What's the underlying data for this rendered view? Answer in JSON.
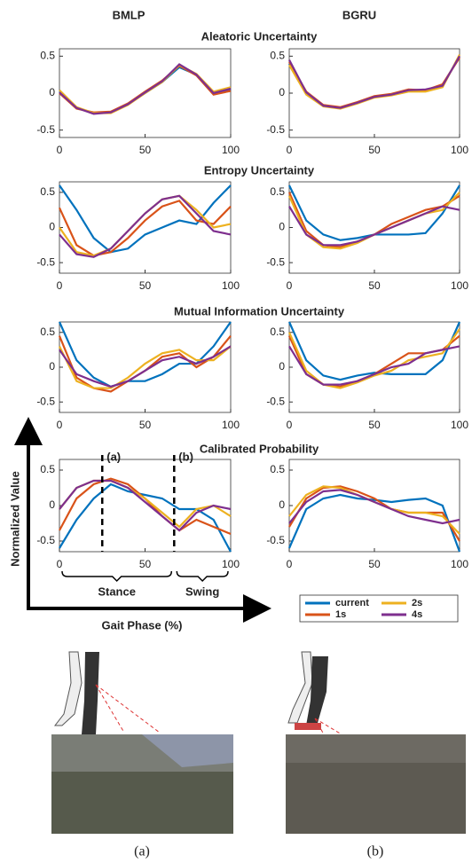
{
  "column_titles": [
    "BMLP",
    "BGRU"
  ],
  "row_titles": [
    "Aleatoric Uncertainty",
    "Entropy Uncertainty",
    "Mutual Information Uncertainty",
    "Calibrated Probability"
  ],
  "legend": [
    {
      "name": "current",
      "color": "#0072BD"
    },
    {
      "name": "1s",
      "color": "#D95319"
    },
    {
      "name": "2s",
      "color": "#EDB120"
    },
    {
      "name": "4s",
      "color": "#7E2F8E"
    }
  ],
  "y_axis_label": "Normalized Value",
  "x_axis_label": "Gait Phase (%)",
  "phases": [
    {
      "label": "Stance",
      "from": 0,
      "to": 67
    },
    {
      "label": "Swing",
      "from": 67,
      "to": 100
    }
  ],
  "captions": [
    "(a)",
    "(b)"
  ],
  "chart_data": [
    {
      "type": "line",
      "x": [
        0,
        10,
        20,
        30,
        40,
        50,
        60,
        70,
        80,
        90,
        100
      ],
      "xlim": [
        0,
        100
      ],
      "xticks": [
        0,
        50,
        100
      ],
      "ylim": [
        -0.6,
        0.6
      ],
      "yticks": [
        -0.5,
        0,
        0.5
      ],
      "series": [
        {
          "values": [
            0.02,
            -0.2,
            -0.27,
            -0.26,
            -0.15,
            0.0,
            0.15,
            0.35,
            0.25,
            0.0,
            0.05
          ]
        },
        {
          "values": [
            0.0,
            -0.21,
            -0.26,
            -0.25,
            -0.14,
            0.02,
            0.17,
            0.37,
            0.24,
            -0.02,
            0.03
          ]
        },
        {
          "values": [
            0.04,
            -0.19,
            -0.27,
            -0.27,
            -0.16,
            0.0,
            0.15,
            0.38,
            0.26,
            0.02,
            0.08
          ]
        },
        {
          "values": [
            0.01,
            -0.2,
            -0.28,
            -0.26,
            -0.15,
            0.01,
            0.16,
            0.39,
            0.25,
            0.0,
            0.06
          ]
        }
      ]
    },
    {
      "type": "line",
      "x": [
        0,
        10,
        20,
        30,
        40,
        50,
        60,
        70,
        80,
        90,
        100
      ],
      "xlim": [
        0,
        100
      ],
      "xticks": [
        0,
        50,
        100
      ],
      "ylim": [
        -0.6,
        0.6
      ],
      "yticks": [
        -0.5,
        0,
        0.5
      ],
      "series": [
        {
          "values": [
            0.4,
            0.0,
            -0.17,
            -0.2,
            -0.13,
            -0.05,
            -0.02,
            0.03,
            0.03,
            0.1,
            0.5
          ]
        },
        {
          "values": [
            0.42,
            0.02,
            -0.16,
            -0.19,
            -0.12,
            -0.04,
            -0.01,
            0.05,
            0.04,
            0.12,
            0.48
          ]
        },
        {
          "values": [
            0.38,
            -0.02,
            -0.18,
            -0.21,
            -0.14,
            -0.06,
            -0.03,
            0.02,
            0.02,
            0.08,
            0.52
          ]
        },
        {
          "values": [
            0.45,
            0.01,
            -0.17,
            -0.2,
            -0.13,
            -0.05,
            -0.02,
            0.04,
            0.05,
            0.1,
            0.5
          ]
        }
      ]
    },
    {
      "type": "line",
      "x": [
        0,
        10,
        20,
        30,
        40,
        50,
        60,
        70,
        80,
        90,
        100
      ],
      "xlim": [
        0,
        100
      ],
      "xticks": [
        0,
        50,
        100
      ],
      "ylim": [
        -0.65,
        0.65
      ],
      "yticks": [
        -0.5,
        0,
        0.5
      ],
      "series": [
        {
          "values": [
            0.6,
            0.25,
            -0.15,
            -0.35,
            -0.3,
            -0.1,
            0.0,
            0.1,
            0.05,
            0.35,
            0.6
          ]
        },
        {
          "values": [
            0.28,
            -0.25,
            -0.4,
            -0.35,
            -0.15,
            0.1,
            0.3,
            0.38,
            0.1,
            0.05,
            0.3
          ]
        },
        {
          "values": [
            0.0,
            -0.35,
            -0.4,
            -0.3,
            -0.05,
            0.2,
            0.4,
            0.45,
            0.25,
            0.0,
            0.05
          ]
        },
        {
          "values": [
            -0.1,
            -0.38,
            -0.42,
            -0.3,
            -0.05,
            0.2,
            0.4,
            0.45,
            0.2,
            -0.05,
            -0.1
          ]
        }
      ]
    },
    {
      "type": "line",
      "x": [
        0,
        10,
        20,
        30,
        40,
        50,
        60,
        70,
        80,
        90,
        100
      ],
      "xlim": [
        0,
        100
      ],
      "xticks": [
        0,
        50,
        100
      ],
      "ylim": [
        -0.65,
        0.65
      ],
      "yticks": [
        -0.5,
        0,
        0.5
      ],
      "series": [
        {
          "values": [
            0.6,
            0.1,
            -0.1,
            -0.18,
            -0.15,
            -0.1,
            -0.1,
            -0.1,
            -0.08,
            0.2,
            0.6
          ]
        },
        {
          "values": [
            0.5,
            -0.05,
            -0.25,
            -0.28,
            -0.2,
            -0.1,
            0.05,
            0.15,
            0.25,
            0.3,
            0.45
          ]
        },
        {
          "values": [
            0.45,
            -0.1,
            -0.28,
            -0.3,
            -0.22,
            -0.1,
            0.0,
            0.1,
            0.2,
            0.25,
            0.5
          ]
        },
        {
          "values": [
            0.3,
            -0.1,
            -0.25,
            -0.25,
            -0.2,
            -0.1,
            0.0,
            0.1,
            0.2,
            0.3,
            0.25
          ]
        }
      ]
    },
    {
      "type": "line",
      "x": [
        0,
        10,
        20,
        30,
        40,
        50,
        60,
        70,
        80,
        90,
        100
      ],
      "xlim": [
        0,
        100
      ],
      "xticks": [
        0,
        50,
        100
      ],
      "ylim": [
        -0.65,
        0.65
      ],
      "yticks": [
        -0.5,
        0,
        0.5
      ],
      "series": [
        {
          "values": [
            0.65,
            0.1,
            -0.15,
            -0.28,
            -0.2,
            -0.2,
            -0.1,
            0.05,
            0.05,
            0.3,
            0.65
          ]
        },
        {
          "values": [
            0.45,
            -0.15,
            -0.3,
            -0.35,
            -0.2,
            -0.05,
            0.15,
            0.2,
            0.0,
            0.15,
            0.45
          ]
        },
        {
          "values": [
            0.3,
            -0.2,
            -0.3,
            -0.3,
            -0.15,
            0.05,
            0.2,
            0.25,
            0.1,
            0.1,
            0.3
          ]
        },
        {
          "values": [
            0.25,
            -0.1,
            -0.2,
            -0.28,
            -0.2,
            -0.05,
            0.1,
            0.15,
            0.05,
            0.15,
            0.3
          ]
        }
      ]
    },
    {
      "type": "line",
      "x": [
        0,
        10,
        20,
        30,
        40,
        50,
        60,
        70,
        80,
        90,
        100
      ],
      "xlim": [
        0,
        100
      ],
      "xticks": [
        0,
        50,
        100
      ],
      "ylim": [
        -0.65,
        0.65
      ],
      "yticks": [
        -0.5,
        0,
        0.5
      ],
      "series": [
        {
          "values": [
            0.65,
            0.1,
            -0.12,
            -0.18,
            -0.12,
            -0.08,
            -0.1,
            -0.1,
            -0.1,
            0.1,
            0.65
          ]
        },
        {
          "values": [
            0.45,
            -0.1,
            -0.25,
            -0.28,
            -0.2,
            -0.1,
            0.05,
            0.2,
            0.2,
            0.25,
            0.45
          ]
        },
        {
          "values": [
            0.5,
            -0.05,
            -0.25,
            -0.3,
            -0.22,
            -0.12,
            -0.05,
            0.1,
            0.15,
            0.2,
            0.55
          ]
        },
        {
          "values": [
            0.3,
            -0.1,
            -0.25,
            -0.25,
            -0.2,
            -0.1,
            0.0,
            0.05,
            0.2,
            0.25,
            0.3
          ]
        }
      ]
    },
    {
      "type": "line",
      "x": [
        0,
        10,
        20,
        30,
        40,
        50,
        60,
        70,
        80,
        90,
        100
      ],
      "xlim": [
        0,
        100
      ],
      "xticks": [
        0,
        50,
        100
      ],
      "ylim": [
        -0.65,
        0.65
      ],
      "yticks": [
        -0.5,
        0,
        0.5
      ],
      "annotations": [
        {
          "text": "(a)",
          "x": 25
        },
        {
          "text": "(b)",
          "x": 67
        }
      ],
      "series": [
        {
          "values": [
            -0.6,
            -0.2,
            0.1,
            0.3,
            0.2,
            0.15,
            0.1,
            -0.05,
            -0.05,
            -0.2,
            -0.65
          ]
        },
        {
          "values": [
            -0.35,
            0.1,
            0.3,
            0.38,
            0.3,
            0.1,
            -0.15,
            -0.35,
            -0.2,
            -0.3,
            -0.4
          ]
        },
        {
          "values": [
            -0.05,
            0.25,
            0.35,
            0.35,
            0.25,
            0.1,
            -0.1,
            -0.3,
            -0.05,
            0.0,
            -0.15
          ]
        },
        {
          "values": [
            -0.05,
            0.25,
            0.35,
            0.35,
            0.25,
            0.05,
            -0.15,
            -0.35,
            -0.1,
            0.0,
            -0.05
          ]
        }
      ]
    },
    {
      "type": "line",
      "x": [
        0,
        10,
        20,
        30,
        40,
        50,
        60,
        70,
        80,
        90,
        100
      ],
      "xlim": [
        0,
        100
      ],
      "xticks": [
        0,
        50,
        100
      ],
      "ylim": [
        -0.65,
        0.65
      ],
      "yticks": [
        -0.5,
        0,
        0.5
      ],
      "series": [
        {
          "values": [
            -0.6,
            -0.05,
            0.1,
            0.15,
            0.1,
            0.08,
            0.05,
            0.08,
            0.1,
            0.0,
            -0.65
          ]
        },
        {
          "values": [
            -0.3,
            0.1,
            0.25,
            0.27,
            0.2,
            0.1,
            -0.05,
            -0.1,
            -0.1,
            -0.1,
            -0.5
          ]
        },
        {
          "values": [
            -0.15,
            0.15,
            0.27,
            0.25,
            0.15,
            0.05,
            -0.05,
            -0.1,
            -0.1,
            -0.15,
            -0.4
          ]
        },
        {
          "values": [
            -0.25,
            0.05,
            0.2,
            0.22,
            0.15,
            0.05,
            -0.05,
            -0.15,
            -0.2,
            -0.25,
            -0.2
          ]
        }
      ]
    }
  ]
}
